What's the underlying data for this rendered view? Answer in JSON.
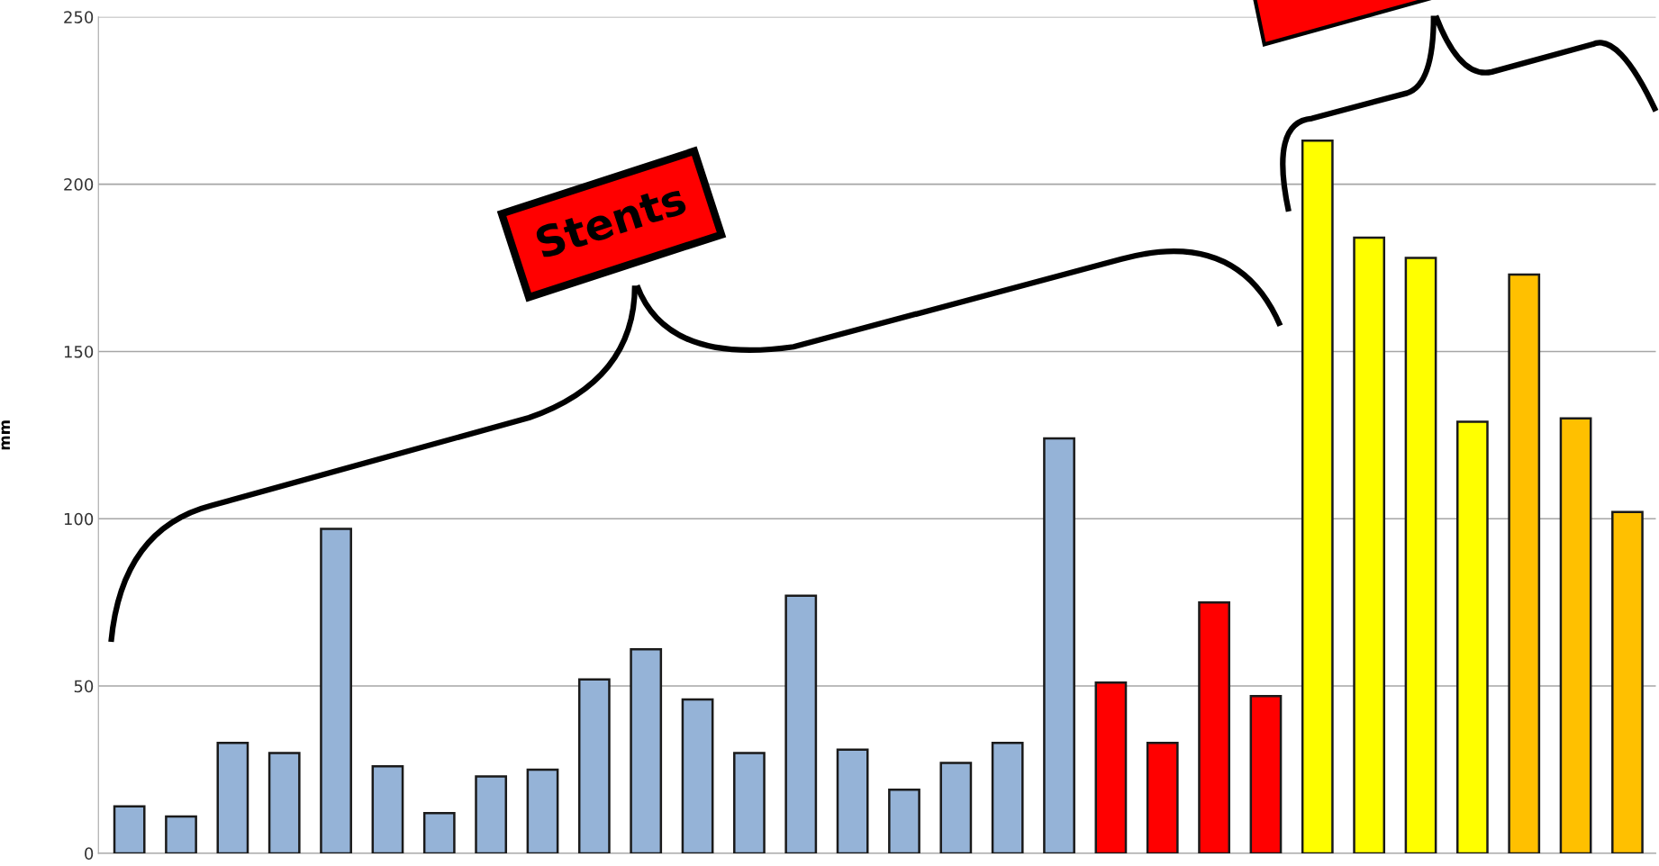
{
  "chart_data": {
    "type": "bar",
    "ylabel": "mm",
    "categories": [
      null,
      null,
      null,
      null,
      null,
      null,
      null,
      null,
      null,
      null,
      null,
      null,
      null,
      null,
      null,
      null,
      null,
      null,
      null,
      null,
      null,
      null,
      null,
      null,
      null,
      null,
      null,
      null,
      null,
      null
    ],
    "values": [
      14,
      11,
      33,
      30,
      97,
      26,
      12,
      23,
      25,
      52,
      61,
      46,
      30,
      77,
      31,
      19,
      27,
      33,
      124,
      51,
      33,
      75,
      47,
      213,
      184,
      178,
      129,
      173,
      130,
      102
    ],
    "colors": [
      "#95b3d7",
      "#95b3d7",
      "#95b3d7",
      "#95b3d7",
      "#95b3d7",
      "#95b3d7",
      "#95b3d7",
      "#95b3d7",
      "#95b3d7",
      "#95b3d7",
      "#95b3d7",
      "#95b3d7",
      "#95b3d7",
      "#95b3d7",
      "#95b3d7",
      "#95b3d7",
      "#95b3d7",
      "#95b3d7",
      "#95b3d7",
      "#ff0000",
      "#ff0000",
      "#ff0000",
      "#ff0000",
      "#ffff00",
      "#ffff00",
      "#ffff00",
      "#ffff00",
      "#ffc000",
      "#ffc000",
      "#ffc000"
    ],
    "ylim": [
      0,
      250
    ],
    "yticks": [
      0,
      50,
      100,
      150,
      200,
      250
    ],
    "grid": "y",
    "annotations": [
      "Stents"
    ]
  }
}
